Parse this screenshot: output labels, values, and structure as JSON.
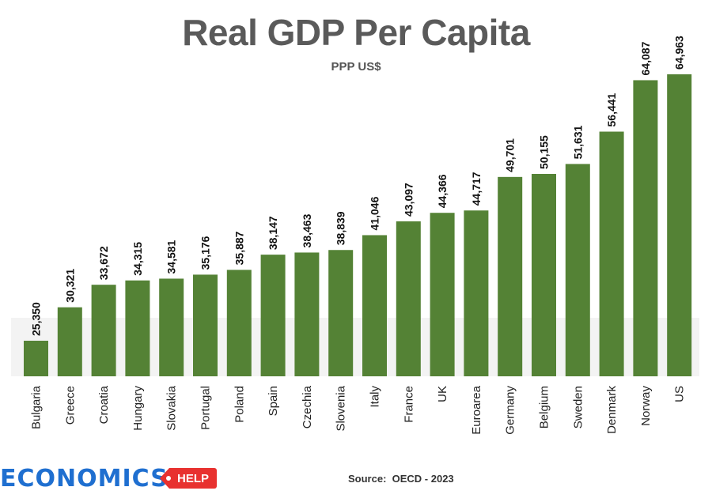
{
  "colors": {
    "bar": "#548235",
    "value_label": "#111111",
    "category_label": "#222222",
    "floor": "#e8e8e8"
  },
  "chart_data": {
    "type": "bar",
    "title": "Real GDP Per Capita",
    "subtitle": "PPP US$",
    "xlabel": "",
    "ylabel": "",
    "grid": false,
    "legend": "none",
    "categories": [
      "Bulgaria",
      "Greece",
      "Croatia",
      "Hungary",
      "Slovakia",
      "Portugal",
      "Poland",
      "Spain",
      "Czechia",
      "Slovenia",
      "Italy",
      "France",
      "UK",
      "Euroarea",
      "Germany",
      "Belgium",
      "Sweden",
      "Denmark",
      "Norway",
      "US"
    ],
    "values": [
      25350,
      30321,
      33672,
      34315,
      34581,
      35176,
      35887,
      38147,
      38463,
      38839,
      41046,
      43097,
      44366,
      44717,
      49701,
      50155,
      51631,
      56441,
      64087,
      64963
    ],
    "value_labels": [
      "25,350",
      "30,321",
      "33,672",
      "34,315",
      "34,581",
      "35,176",
      "35,887",
      "38,147",
      "38,463",
      "38,839",
      "41,046",
      "43,097",
      "44,366",
      "44,717",
      "49,701",
      "50,155",
      "51,631",
      "56,441",
      "64,087",
      "64,963"
    ]
  },
  "source": "Source:  OECD - 2023",
  "logo": {
    "main": "ECONOMICS",
    "tag": "HELP"
  }
}
